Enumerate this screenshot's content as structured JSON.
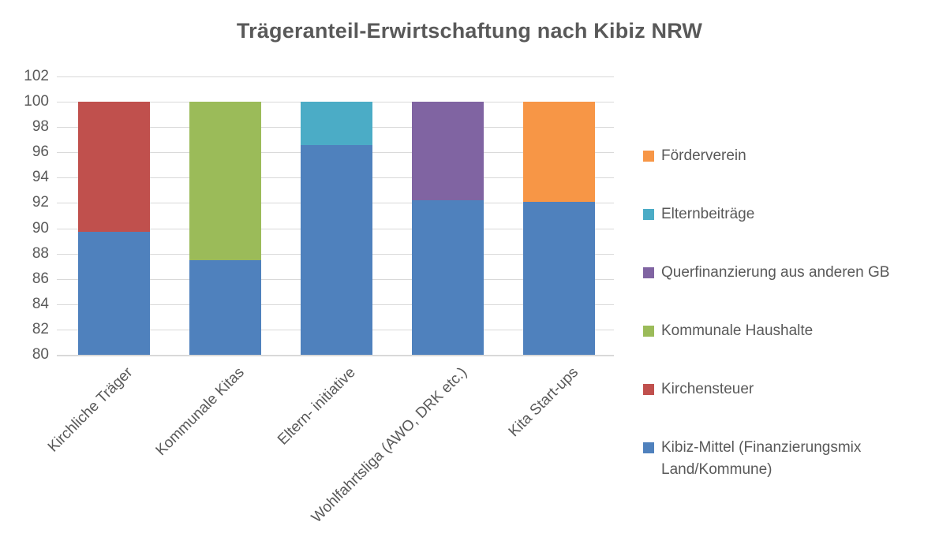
{
  "title": "Trägeranteil-Erwirtschaftung nach Kibiz NRW",
  "chart_data": {
    "type": "bar",
    "stacked": true,
    "title": "Trägeranteil-Erwirtschaftung nach Kibiz NRW",
    "categories": [
      "Kirchliche Träger",
      "Kommunale Kitas",
      "Eltern- initiative",
      "Wohlfahrtsliga (AWO, DRK etc.)",
      "Kita Start-ups"
    ],
    "series": [
      {
        "name": "Kibiz-Mittel (Finanzierungsmix Land/Kommune)",
        "color": "#4F81BD",
        "values": [
          89.7,
          87.5,
          96.6,
          92.2,
          92.1
        ]
      },
      {
        "name": "Kirchensteuer",
        "color": "#C0504D",
        "values": [
          10.3,
          0,
          0,
          0,
          0
        ]
      },
      {
        "name": "Kommunale Haushalte",
        "color": "#9BBB59",
        "values": [
          0,
          12.5,
          0,
          0,
          0
        ]
      },
      {
        "name": "Elternbeiträge",
        "color": "#4BACC6",
        "values": [
          0,
          0,
          3.4,
          0,
          0
        ]
      },
      {
        "name": "Querfinanzierung aus anderen GB",
        "color": "#8064A2",
        "values": [
          0,
          0,
          0,
          7.8,
          0
        ]
      },
      {
        "name": "Förderverein",
        "color": "#F79646",
        "values": [
          0,
          0,
          0,
          0,
          7.9
        ]
      }
    ],
    "bar_totals": [
      100,
      100,
      100,
      100,
      100
    ],
    "xlabel": "",
    "ylabel": "",
    "ylim": [
      80,
      102
    ],
    "yticks": [
      102,
      100,
      98,
      96,
      94,
      92,
      90,
      88,
      86,
      84,
      82,
      80
    ],
    "grid": true,
    "gridline_color": "#D9D9D9",
    "text_color": "#595959",
    "legend_position": "right"
  },
  "legend": {
    "items": [
      {
        "label": "Förderverein",
        "color": "#F79646"
      },
      {
        "label": "Elternbeiträge",
        "color": "#4BACC6"
      },
      {
        "label": "Querfinanzierung aus anderen GB",
        "color": "#8064A2"
      },
      {
        "label": "Kommunale Haushalte",
        "color": "#9BBB59"
      },
      {
        "label": "Kirchensteuer",
        "color": "#C0504D"
      },
      {
        "label": "Kibiz-Mittel (Finanzierungsmix Land/Kommune)",
        "color": "#4F81BD"
      }
    ]
  }
}
